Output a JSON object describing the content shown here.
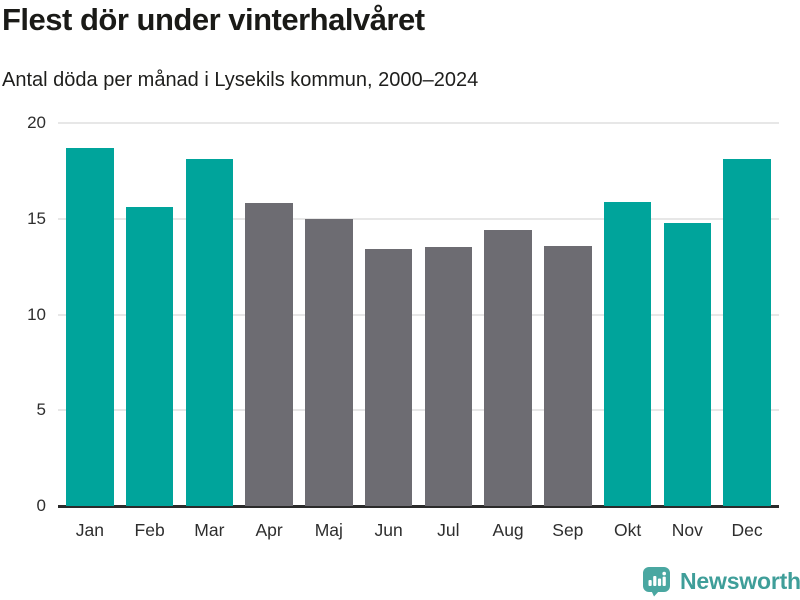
{
  "header": {
    "title": "Flest dör under vinterhalvåret",
    "subtitle": "Antal döda per månad i Lysekils kommun, 2000–2024"
  },
  "chart_data": {
    "type": "bar",
    "title": "Flest dör under vinterhalvåret",
    "subtitle": "Antal döda per månad i Lysekils kommun, 2000–2024",
    "categories": [
      "Jan",
      "Feb",
      "Mar",
      "Apr",
      "Maj",
      "Jun",
      "Jul",
      "Aug",
      "Sep",
      "Okt",
      "Nov",
      "Dec"
    ],
    "values": [
      18.7,
      15.6,
      18.1,
      15.8,
      15.0,
      13.4,
      13.5,
      14.4,
      13.6,
      15.9,
      14.8,
      18.1
    ],
    "bar_colors": [
      "#00a49b",
      "#00a49b",
      "#00a49b",
      "#6d6c72",
      "#6d6c72",
      "#6d6c72",
      "#6d6c72",
      "#6d6c72",
      "#6d6c72",
      "#00a49b",
      "#00a49b",
      "#00a49b"
    ],
    "xlabel": "",
    "ylabel": "",
    "ylim": [
      0,
      20
    ],
    "yticks": [
      0,
      5,
      10,
      15,
      20
    ],
    "grid": true,
    "legend": false
  },
  "colors": {
    "winter_bar": "#00a49b",
    "summer_bar": "#6d6c72",
    "gridline": "#e7e7e7",
    "axis_line": "#2b2b2b",
    "tick_text": "#2e2e2e",
    "title_text": "#1a1a17",
    "brand_teal": "#3f9e99",
    "logo_icon_fill": "#4aa7a1"
  },
  "branding": {
    "logo_text": "Newsworthy",
    "logo_icon": "bar-chart-speech-bubble-icon"
  }
}
